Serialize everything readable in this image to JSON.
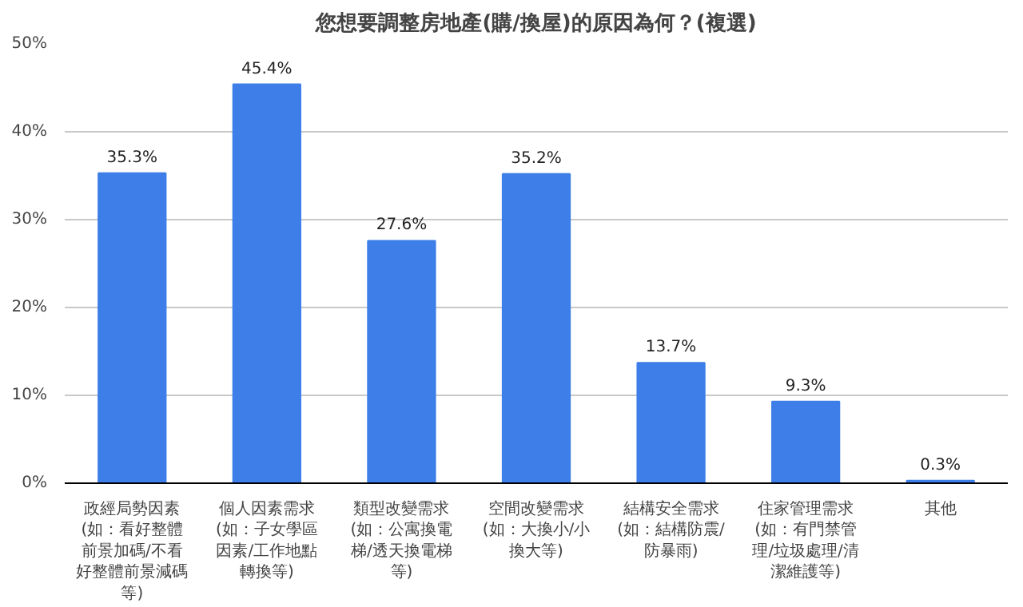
{
  "chart_data": {
    "type": "bar",
    "title": "您想要調整房地產(購/換屋)的原因為何？(複選)",
    "categories": [
      "政經局勢因素(如：看好整體前景加碼/不看好整體前景減碼等)",
      "個人因素需求(如：子女學區因素/工作地點轉換等)",
      "類型改變需求(如：公寓換電梯/透天換電梯等)",
      "空間改變需求(如：大換小/小換大等)",
      "結構安全需求(如：結構防震/防暴雨)",
      "住家管理需求(如：有門禁管理/垃圾處理/清潔維護等)",
      "其他"
    ],
    "values": [
      35.3,
      45.4,
      27.6,
      35.2,
      13.7,
      9.3,
      0.3
    ],
    "value_labels": [
      "35.3%",
      "45.4%",
      "27.6%",
      "35.2%",
      "13.7%",
      "9.3%",
      "0.3%"
    ],
    "color": "#3d7ee8",
    "ylim": [
      0,
      50
    ],
    "yticks": [
      {
        "value": 0,
        "label": "0%"
      },
      {
        "value": 10,
        "label": "10%"
      },
      {
        "value": 20,
        "label": "20%"
      },
      {
        "value": 30,
        "label": "30%"
      },
      {
        "value": 40,
        "label": "40%"
      },
      {
        "value": 50,
        "label": "50%"
      }
    ],
    "grid": "y"
  }
}
